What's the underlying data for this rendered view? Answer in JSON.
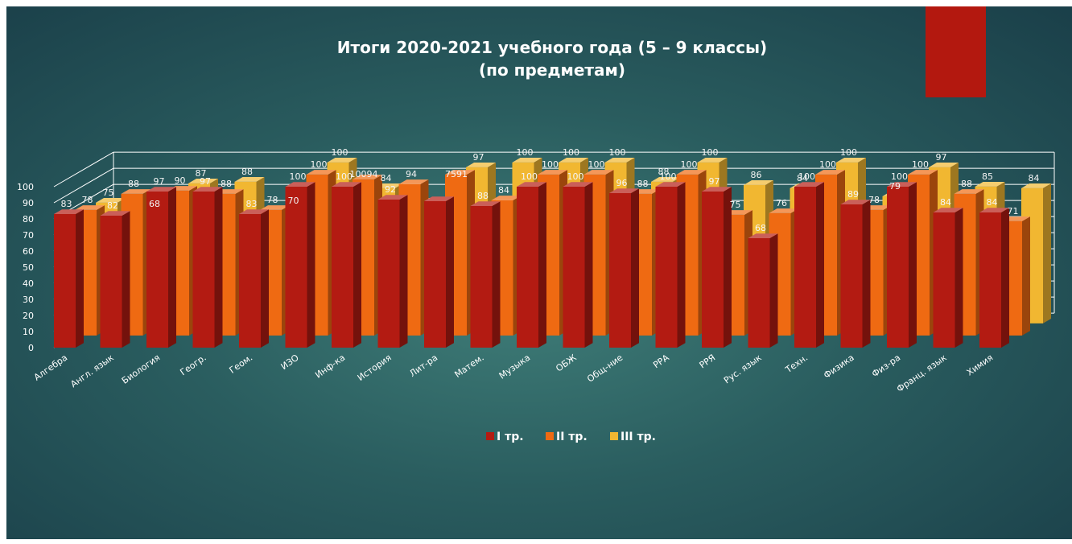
{
  "chart_data": {
    "type": "bar",
    "title": [
      "Итоги 2020-2021  учебного года (5 – 9 классы)",
      "(по предметам)"
    ],
    "categories": [
      "Алгебра",
      "Англ. язык",
      "Биология",
      "Геогр.",
      "Геом.",
      "ИЗО",
      "Инф-ка",
      "История",
      "Лит-ра",
      "Матем.",
      "Музыка",
      "ОБЖ",
      "Общ-ние",
      "РРА",
      "РРЯ",
      "Рус. язык",
      "Техн.",
      "Физика",
      "Физ-ра",
      "Франц. язык",
      "Химия"
    ],
    "series": [
      {
        "name": "I тр.",
        "color": "#b31b12",
        "values": [
          83,
          82,
          97,
          97,
          83,
          100,
          100,
          92,
          91,
          88,
          100,
          100,
          96,
          100,
          97,
          68,
          100,
          89,
          100,
          84,
          84
        ]
      },
      {
        "name": "II тр.",
        "color": "#ef6a12",
        "values": [
          78,
          88,
          90,
          88,
          78,
          100,
          97,
          94,
          100,
          84,
          100,
          100,
          88,
          100,
          75,
          76,
          100,
          78,
          100,
          88,
          71
        ]
      },
      {
        "name": "III тр.",
        "color": "#f1b731",
        "values": [
          75,
          68,
          87,
          88,
          70,
          100,
          84,
          75,
          97,
          100,
          100,
          100,
          88,
          100,
          86,
          84,
          100,
          79,
          97,
          85,
          84
        ]
      }
    ],
    "value_labels": [
      [
        "83",
        "82",
        "97",
        "97",
        "83",
        "100",
        "100",
        "92",
        "",
        "88",
        "100",
        "100",
        "96",
        "100",
        "97",
        "68",
        "100",
        "89",
        "100",
        "84",
        "84"
      ],
      [
        "78",
        "88",
        "90",
        "88",
        "78",
        "100",
        "",
        "94",
        "",
        "84",
        "100",
        "100",
        "88",
        "100",
        "75",
        "76",
        "100",
        "78",
        "100",
        "88",
        "71"
      ],
      [
        "75",
        "68",
        "87",
        "88",
        "70",
        "100",
        "84",
        "",
        "97",
        "100",
        "100",
        "100",
        "88",
        "100",
        "86",
        "84",
        "100",
        "79",
        "97",
        "85",
        "84"
      ]
    ],
    "merged_labels": [
      "10094",
      "7591"
    ],
    "yticks": [
      "0",
      "10",
      "20",
      "30",
      "40",
      "50",
      "60",
      "70",
      "80",
      "90",
      "100"
    ],
    "ylim": [
      0,
      100
    ],
    "legend_position": "bottom",
    "grid": true,
    "decoration_color": "#b3180f"
  }
}
